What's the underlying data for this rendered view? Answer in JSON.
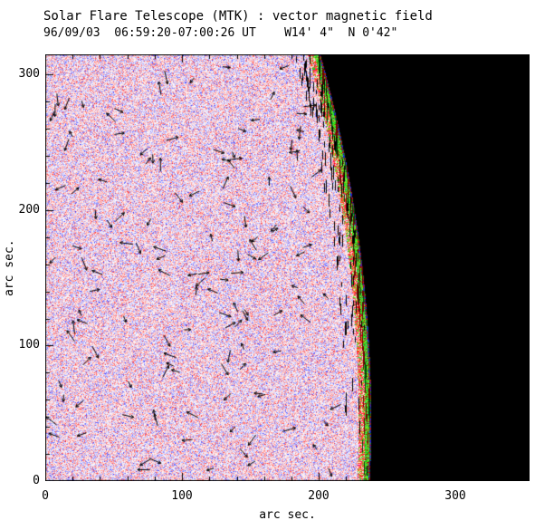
{
  "chart_data": {
    "type": "heatmap",
    "title": "Solar Flare Telescope (MTK) : vector magnetic field",
    "subtitle": "96/09/03  06:59:20-07:00:26 UT    W14' 4\"  N 0'42\"",
    "xlabel": "arc sec.",
    "ylabel": "arc sec.",
    "xlim": [
      0,
      354
    ],
    "ylim": [
      0,
      315
    ],
    "xticks": [
      "0",
      "100",
      "200",
      "300"
    ],
    "yticks": [
      "0",
      "100",
      "200",
      "300"
    ],
    "grid": false,
    "description": "Vector magnetogram of the west solar limb: speckled red/blue noise field over the solar disk (red = positive polarity, blue = negative polarity), scattered black transverse-field arrows, bright green/red/blue fringe along the curved solar limb, and black off-limb sky filling the right side of the frame.",
    "solar_limb": {
      "center_x": -761,
      "center_y": 45,
      "radius": 999,
      "x_at_y0": 237,
      "x_at_ytop": 201
    },
    "colors": {
      "positive_polarity": "#ff4040",
      "negative_polarity": "#4040ff",
      "disk_background": "#ffffff",
      "off_limb_space": "#000000",
      "limb_band_green": "#00b400",
      "limb_edge_red": "#b41e00",
      "limb_edge_blue": "#1e28c8",
      "vector_arrows": "#000000",
      "frame": "#000000"
    },
    "vectors": {
      "approx_count": 135,
      "color": "#000000"
    }
  }
}
